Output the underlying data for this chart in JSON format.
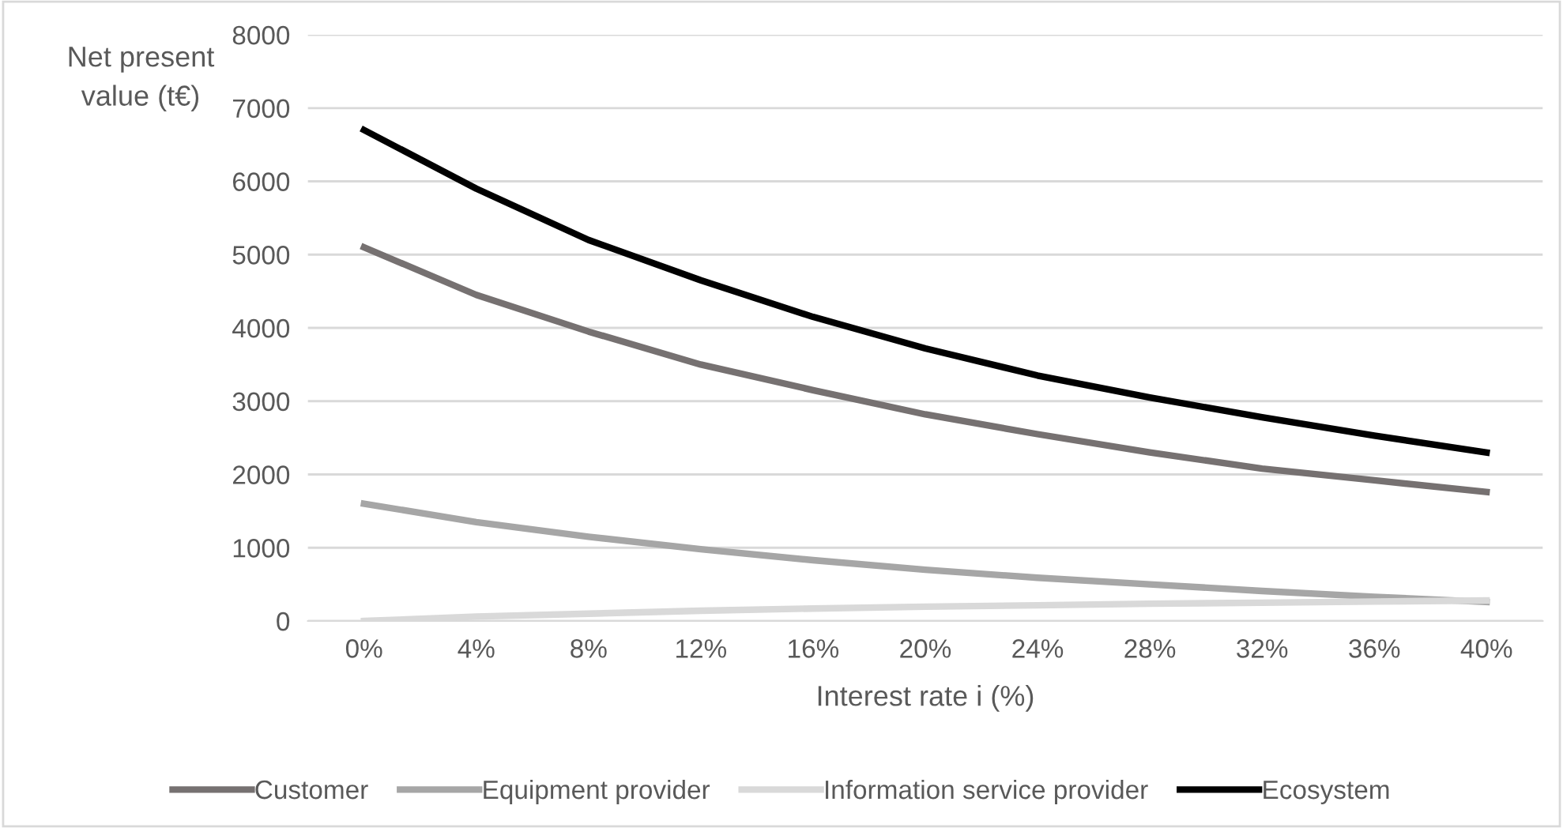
{
  "chart_data": {
    "type": "line",
    "xlabel": "Interest rate i (%)",
    "ylabel": "Net present\nvalue (t€)",
    "x": [
      0,
      4,
      8,
      12,
      16,
      20,
      24,
      28,
      32,
      36,
      40
    ],
    "xlim": [
      -2,
      42
    ],
    "xticks": [
      {
        "value": 0,
        "label": "0%"
      },
      {
        "value": 4,
        "label": "4%"
      },
      {
        "value": 8,
        "label": "8%"
      },
      {
        "value": 12,
        "label": "12%"
      },
      {
        "value": 16,
        "label": "16%"
      },
      {
        "value": 20,
        "label": "20%"
      },
      {
        "value": 24,
        "label": "24%"
      },
      {
        "value": 28,
        "label": "28%"
      },
      {
        "value": 32,
        "label": "32%"
      },
      {
        "value": 36,
        "label": "36%"
      },
      {
        "value": 40,
        "label": "40%"
      }
    ],
    "ylim": [
      0,
      8000
    ],
    "yticks": [
      0,
      1000,
      2000,
      3000,
      4000,
      5000,
      6000,
      7000,
      8000
    ],
    "grid": "y",
    "legend": "bottom",
    "marker": "none",
    "line_style": "solid",
    "series": [
      {
        "name": "Customer",
        "color": "#767171",
        "values": [
          5100,
          4450,
          3950,
          3500,
          3150,
          2820,
          2550,
          2300,
          2080,
          1920,
          1760
        ]
      },
      {
        "name": "Equipment provider",
        "color": "#a6a6a6",
        "values": [
          1600,
          1350,
          1150,
          980,
          830,
          700,
          590,
          500,
          410,
          330,
          260
        ]
      },
      {
        "name": "Information service provider",
        "color": "#d9d9d9",
        "values": [
          0,
          60,
          100,
          140,
          170,
          195,
          215,
          235,
          250,
          265,
          280
        ]
      },
      {
        "name": "Ecosystem",
        "color": "#000000",
        "values": [
          6700,
          5900,
          5200,
          4650,
          4150,
          3720,
          3350,
          3050,
          2780,
          2530,
          2300
        ]
      }
    ]
  }
}
